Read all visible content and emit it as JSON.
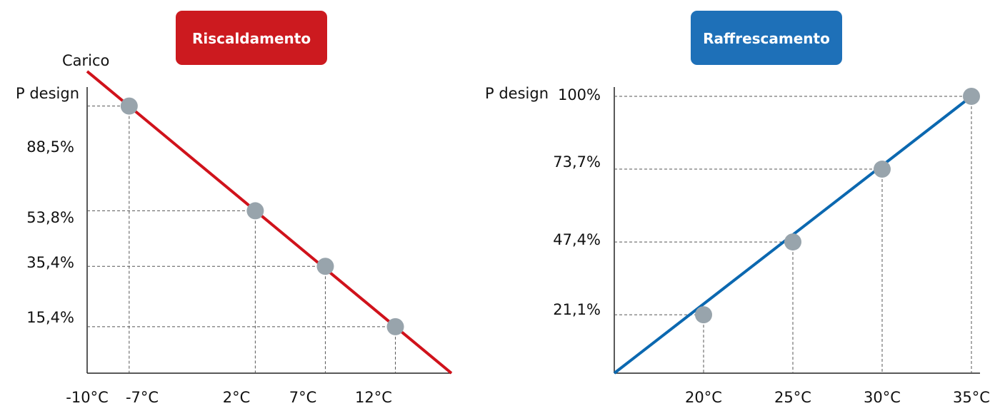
{
  "chart_data": [
    {
      "type": "line",
      "title": "Riscaldamento",
      "title_color": "#cc1a1f",
      "line_color": "#d0121b",
      "marker_color": "#98a4ac",
      "ylabel": "Carico",
      "y_top_label": "P design",
      "x_tick_labels": [
        "-10°C",
        "-7°C",
        "2°C",
        "7°C",
        "12°C"
      ],
      "y_tick_labels": [
        "88,5%",
        "53,8%",
        "35,4%",
        "15,4%"
      ],
      "points": [
        {
          "x": -7,
          "y": 88.5
        },
        {
          "x": 2,
          "y": 53.8
        },
        {
          "x": 7,
          "y": 35.4
        },
        {
          "x": 12,
          "y": 15.4
        }
      ],
      "line_start": {
        "x": -10,
        "y": 100
      },
      "line_end": {
        "x": 16,
        "y": 0
      },
      "xlim": [
        -10,
        16
      ],
      "ylim": [
        0,
        100
      ],
      "grid": "dashed guides to points"
    },
    {
      "type": "line",
      "title": "Raffrescamento",
      "title_color": "#1e70b8",
      "line_color": "#0b68b0",
      "marker_color": "#98a4ac",
      "y_top_label": "P design",
      "x_tick_labels": [
        "20°C",
        "25°C",
        "30°C",
        "35°C"
      ],
      "y_tick_labels": [
        "100%",
        "73,7%",
        "47,4%",
        "21,1%"
      ],
      "points": [
        {
          "x": 20,
          "y": 21.1
        },
        {
          "x": 25,
          "y": 47.4
        },
        {
          "x": 30,
          "y": 73.7
        },
        {
          "x": 35,
          "y": 100
        }
      ],
      "line_start": {
        "x": 15,
        "y": 0
      },
      "line_end": {
        "x": 35,
        "y": 100
      },
      "xlim": [
        15,
        35
      ],
      "ylim": [
        0,
        100
      ],
      "grid": "dashed guides to points"
    }
  ]
}
